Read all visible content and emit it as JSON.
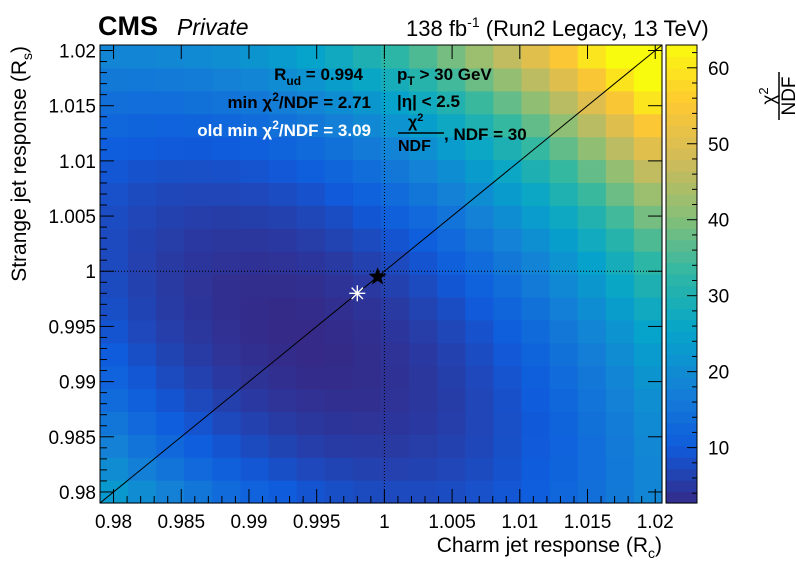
{
  "header": {
    "experiment": "CMS",
    "status": "Private",
    "lumi_value": "138 fb",
    "lumi_exp": "-1",
    "lumi_rest": " (Run2 Legacy, 13 TeV)"
  },
  "annotations": {
    "rud_label": "R",
    "rud_sub": "ud",
    "rud_value": " = 0.994",
    "min_prefix": "min ",
    "min_chi": "χ",
    "min_exp": "2",
    "min_suffix": "/NDF = 2.71",
    "old_prefix": "old min ",
    "old_chi": "χ",
    "old_exp": "2",
    "old_suffix": "/NDF = 3.09",
    "pt_p": "p",
    "pt_sub": "T",
    "pt_rest": " > 30 GeV",
    "eta_text": "|η| < 2.5",
    "frac_num": "χ",
    "frac_num_exp": "2",
    "frac_den": "NDF",
    "ndf_text": ", NDF = 30"
  },
  "colorbar": {
    "title_num": "χ",
    "title_num_exp": "2",
    "title_den": "NDF"
  },
  "chart_data": {
    "type": "heatmap",
    "title": "",
    "xlabel": "Charm jet response (R",
    "xlabel_sub": "c",
    "xlabel_end": ")",
    "ylabel": "Strange jet response (R",
    "ylabel_sub": "s",
    "ylabel_end": ")",
    "xlim": [
      0.979,
      1.0205
    ],
    "ylim": [
      0.979,
      1.0205
    ],
    "x_ticks": [
      0.98,
      0.985,
      0.99,
      0.995,
      1.0,
      1.005,
      1.01,
      1.015,
      1.02
    ],
    "x_tick_labels": [
      "0.98",
      "0.985",
      "0.99",
      "0.995",
      "1",
      "1.005",
      "1.01",
      "1.015",
      "1.02"
    ],
    "y_ticks": [
      0.98,
      0.985,
      0.99,
      0.995,
      1.0,
      1.005,
      1.01,
      1.015,
      1.02
    ],
    "y_tick_labels": [
      "0.98",
      "0.985",
      "0.99",
      "0.995",
      "1",
      "1.005",
      "1.01",
      "1.015",
      "1.02"
    ],
    "bins": 20,
    "z_range": [
      2.71,
      63
    ],
    "z_ticks": [
      10,
      20,
      30,
      40,
      50,
      60
    ],
    "z_tick_labels": [
      "10",
      "20",
      "30",
      "40",
      "50",
      "60"
    ],
    "palette": [
      "#352a87",
      "#0f5cdd",
      "#1481d6",
      "#06a4ca",
      "#2eb7a4",
      "#87bf77",
      "#d1bb59",
      "#fec832",
      "#f9fb0e"
    ],
    "z_model": {
      "min": 2.71,
      "coef_sum": 26000,
      "coef_diff": 8000,
      "sum_center": 1.988
    },
    "best_fit": {
      "x": 0.9995,
      "y": 0.9995,
      "chi2_ndf": 2.71
    },
    "old_best_fit": {
      "x": 0.998,
      "y": 0.998,
      "chi2_ndf": 3.09
    },
    "reference_lines": {
      "x": 1.0,
      "y": 1.0
    },
    "diagonal": [
      [
        0.979,
        0.979
      ],
      [
        1.0205,
        1.0205
      ]
    ]
  }
}
